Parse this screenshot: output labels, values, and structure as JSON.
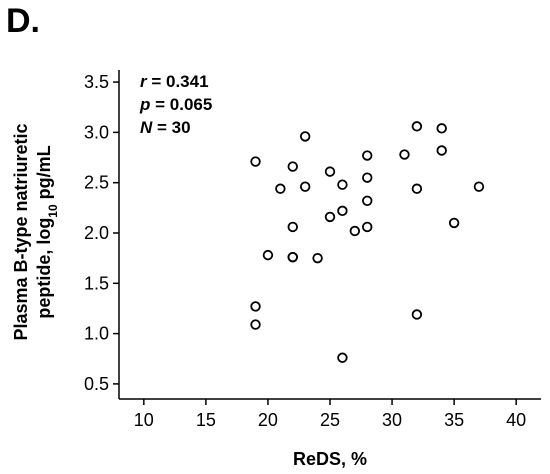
{
  "panel_label": "D.",
  "chart_data": {
    "type": "scatter",
    "xlabel": "ReDS, %",
    "ylabel_line1": "Plasma B-type natriuretic",
    "ylabel_line2_prefix": "peptide, log",
    "ylabel_line2_sub": "10",
    "ylabel_line2_suffix": " pg/mL",
    "xlim": [
      8,
      42
    ],
    "ylim": [
      0.35,
      3.62
    ],
    "x_ticks": [
      10,
      15,
      20,
      25,
      30,
      35,
      40
    ],
    "y_ticks": [
      0.5,
      1.0,
      1.5,
      2.0,
      2.5,
      3.0,
      3.5
    ],
    "x_tick_labels": [
      "10",
      "15",
      "20",
      "25",
      "30",
      "35",
      "40"
    ],
    "y_tick_labels": [
      "0.5",
      "1.0",
      "1.5",
      "2.0",
      "2.5",
      "3.0",
      "3.5"
    ],
    "grid": false,
    "marker": "open-circle",
    "annotations": {
      "r_label": "r",
      "r_value": " = 0.341",
      "p_label": "p",
      "p_value": " = 0.065",
      "n_label": "N",
      "n_value": " = 30"
    },
    "points": [
      {
        "x": 19,
        "y": 2.71
      },
      {
        "x": 19,
        "y": 1.27
      },
      {
        "x": 19,
        "y": 1.09
      },
      {
        "x": 20,
        "y": 1.78
      },
      {
        "x": 21,
        "y": 2.44
      },
      {
        "x": 22,
        "y": 2.66
      },
      {
        "x": 22,
        "y": 2.06
      },
      {
        "x": 22,
        "y": 1.76
      },
      {
        "x": 22,
        "y": 1.76
      },
      {
        "x": 23,
        "y": 2.96
      },
      {
        "x": 23,
        "y": 2.46
      },
      {
        "x": 24,
        "y": 1.75
      },
      {
        "x": 25,
        "y": 2.61
      },
      {
        "x": 25,
        "y": 2.16
      },
      {
        "x": 26,
        "y": 2.48
      },
      {
        "x": 26,
        "y": 2.22
      },
      {
        "x": 26,
        "y": 0.76
      },
      {
        "x": 27,
        "y": 2.02
      },
      {
        "x": 28,
        "y": 2.77
      },
      {
        "x": 28,
        "y": 2.55
      },
      {
        "x": 28,
        "y": 2.32
      },
      {
        "x": 28,
        "y": 2.06
      },
      {
        "x": 31,
        "y": 2.78
      },
      {
        "x": 32,
        "y": 3.06
      },
      {
        "x": 32,
        "y": 2.44
      },
      {
        "x": 32,
        "y": 1.19
      },
      {
        "x": 34,
        "y": 3.04
      },
      {
        "x": 34,
        "y": 2.82
      },
      {
        "x": 35,
        "y": 2.1
      },
      {
        "x": 37,
        "y": 2.46
      }
    ]
  }
}
